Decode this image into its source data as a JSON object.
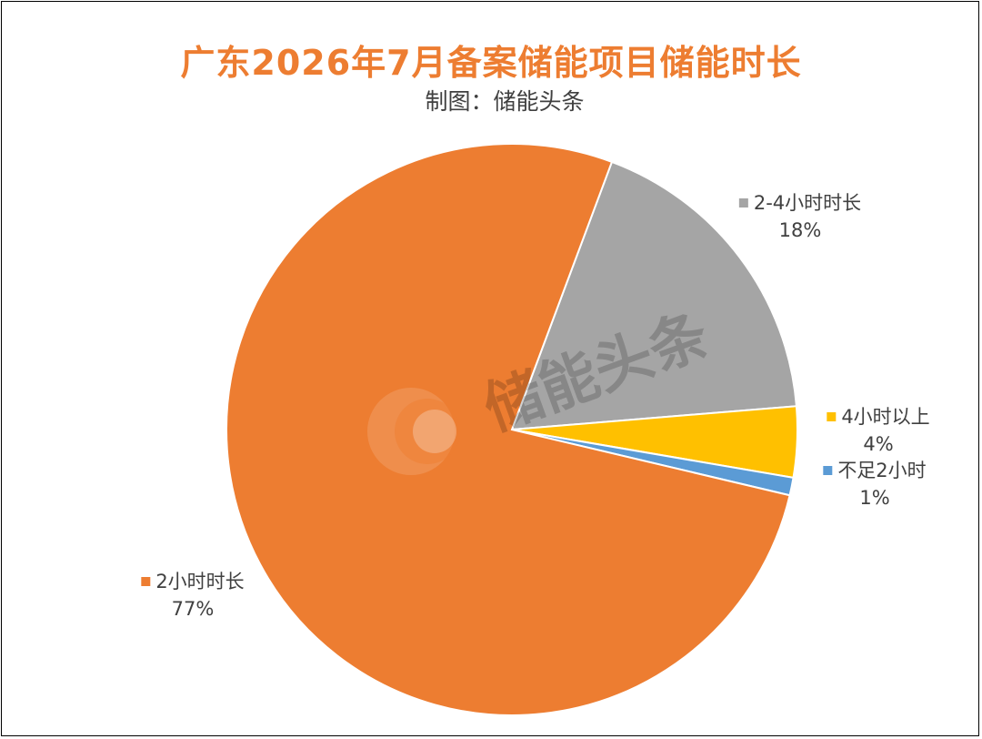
{
  "title": "广东2026年7月备案储能项目储能时长",
  "subtitle": "制图：储能头条",
  "watermark": "储能头条",
  "chart_data": {
    "type": "pie",
    "title": "广东2026年7月备案储能项目储能时长",
    "subtitle": "制图：储能头条",
    "slices": [
      {
        "name": "2小时时长",
        "value": 77,
        "label": "77%",
        "color": "#ED7D31"
      },
      {
        "name": "2-4小时时长",
        "value": 18,
        "label": "18%",
        "color": "#A5A5A5"
      },
      {
        "name": "4小时以上",
        "value": 4,
        "label": "4%",
        "color": "#FFC000"
      },
      {
        "name": "不足2小时",
        "value": 1,
        "label": "1%",
        "color": "#5B9BD5"
      }
    ]
  }
}
